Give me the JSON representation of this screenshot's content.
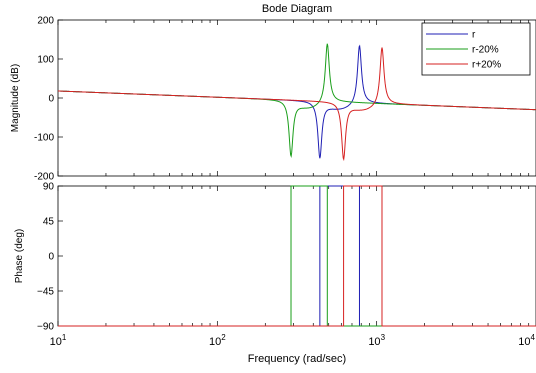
{
  "chart_data": {
    "type": "line",
    "title": "Bode Diagram",
    "xlabel": "Frequency  (rad/sec)",
    "xscale": "log",
    "xlim": [
      10,
      10000
    ],
    "x_ticks": [
      {
        "value": 10,
        "base": "10",
        "exp": "1"
      },
      {
        "value": 100,
        "base": "10",
        "exp": "2"
      },
      {
        "value": 1000,
        "base": "10",
        "exp": "3"
      },
      {
        "value": 10000,
        "base": "10",
        "exp": "4"
      }
    ],
    "legend": {
      "placement": "top-right"
    },
    "grid": false,
    "series": [
      {
        "name": "r",
        "color": "#1f1fb4",
        "notch": 440,
        "peak": 780
      },
      {
        "name": "r-20%",
        "color": "#1a9e1a",
        "notch": 290,
        "peak": 490
      },
      {
        "name": "r+20%",
        "color": "#d62222",
        "notch": 620,
        "peak": 1080
      }
    ],
    "magnitude": {
      "ylabel": "Magnitude (dB)",
      "ylim": [
        -200,
        200
      ],
      "yticks": [
        -200,
        -100,
        0,
        100,
        200
      ],
      "line_start": {
        "x": 10,
        "y": 18
      },
      "line_end": {
        "x": 10000,
        "y": -30
      },
      "r": {
        "notch_db": -155,
        "peak_db": 135
      },
      "r-20%": {
        "notch_db": -150,
        "peak_db": 140
      },
      "r+20%": {
        "notch_db": -158,
        "peak_db": 130
      }
    },
    "phase": {
      "ylabel": "Phase (deg)",
      "ylim": [
        -90,
        90
      ],
      "yticks": [
        -90,
        -45,
        0,
        45,
        90
      ]
    }
  }
}
